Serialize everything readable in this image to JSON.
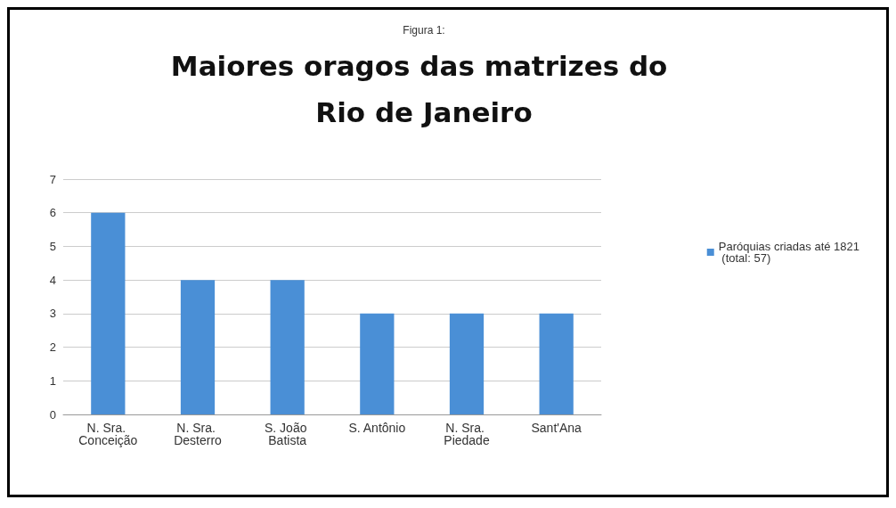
{
  "chart_data": {
    "type": "bar",
    "subtitle": "Figura 1:",
    "title": "Maiores oragos das matrizes do Rio de Janeiro",
    "categories": [
      "N. Sra. Conceição",
      "N. Sra. Desterro",
      "S. João Batista",
      "S. Antônio",
      "N. Sra. Piedade",
      "Sant'Ana"
    ],
    "series": [
      {
        "name": "Paróquias criadas até 1821 (total: 57)",
        "color": "#4a8fd6",
        "values": [
          6,
          4,
          4,
          3,
          3,
          3
        ]
      }
    ],
    "ylim": [
      0,
      7
    ],
    "yticks": [
      0,
      1,
      2,
      3,
      4,
      5,
      6,
      7
    ],
    "grid": "y",
    "legend": "right"
  }
}
